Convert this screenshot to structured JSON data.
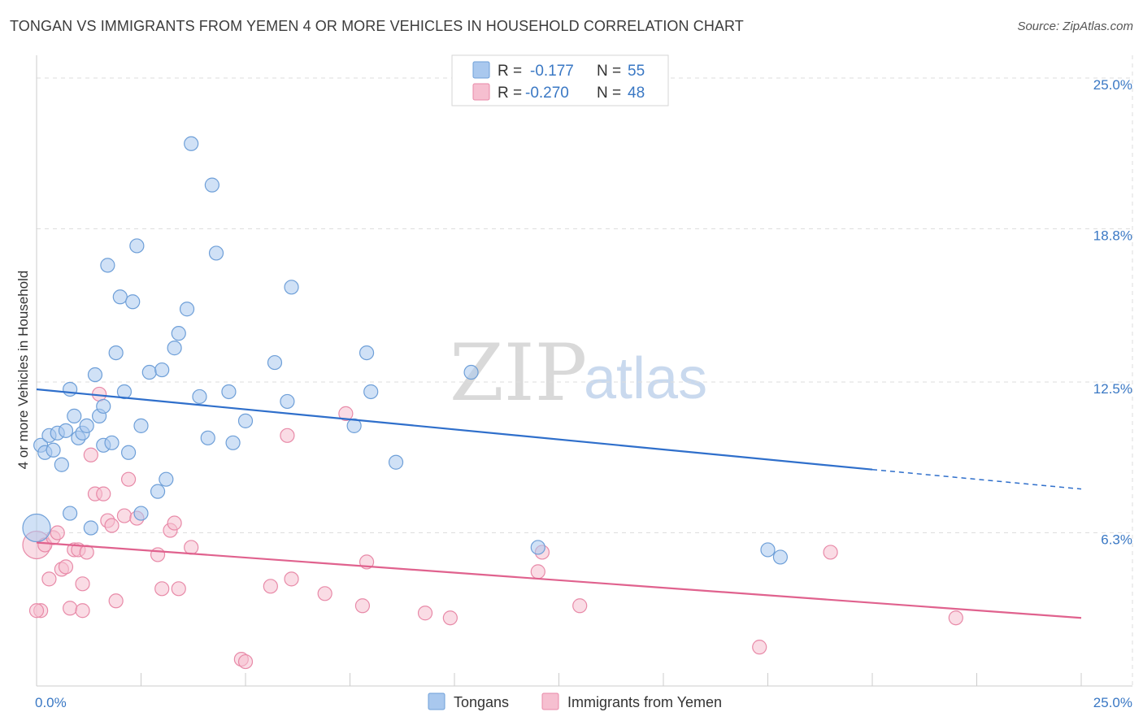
{
  "title": "TONGAN VS IMMIGRANTS FROM YEMEN 4 OR MORE VEHICLES IN HOUSEHOLD CORRELATION CHART",
  "source": "Source: ZipAtlas.com",
  "colors": {
    "blue_fill": "#a9c8ee",
    "blue_stroke": "#6e9fd8",
    "blue_line": "#2f6fcb",
    "pink_fill": "#f6bfd0",
    "pink_stroke": "#e88aa8",
    "pink_line": "#e0628e",
    "grid": "#dddddd",
    "tick_text": "#3a78c4"
  },
  "legend": {
    "r_label": "R =",
    "n_label": "N =",
    "series": [
      {
        "r": "-0.177",
        "n": "55"
      },
      {
        "r": "-0.270",
        "n": "48"
      }
    ]
  },
  "watermark": {
    "zip": "ZIP",
    "atlas": "atlas"
  },
  "chart_data": {
    "type": "scatter",
    "title": "TONGAN VS IMMIGRANTS FROM YEMEN 4 OR MORE VEHICLES IN HOUSEHOLD CORRELATION CHART",
    "xlabel": "",
    "ylabel": "4 or more Vehicles in Household",
    "xlim": [
      0,
      25
    ],
    "ylim": [
      0,
      25
    ],
    "x_tick_labels": [
      "0.0%",
      "25.0%"
    ],
    "y_tick_values": [
      6.3,
      12.5,
      18.8,
      25.0
    ],
    "y_tick_labels": [
      "6.3%",
      "12.5%",
      "18.8%",
      "25.0%"
    ],
    "grid": true,
    "legend_position": "top-center",
    "series": [
      {
        "name": "Tongans",
        "trend": {
          "x0": 0,
          "y0": 12.2,
          "x1": 20,
          "y1": 8.9,
          "dashed_to_x": 25,
          "dashed_to_y": 8.1
        },
        "points": [
          [
            0.1,
            9.9,
            1
          ],
          [
            0.2,
            9.6,
            1
          ],
          [
            0.3,
            10.3,
            1
          ],
          [
            0.4,
            9.7,
            1
          ],
          [
            0.5,
            10.4,
            1
          ],
          [
            0.6,
            9.1,
            1
          ],
          [
            0.7,
            10.5,
            1
          ],
          [
            0.8,
            12.2,
            1
          ],
          [
            0.9,
            11.1,
            1
          ],
          [
            1.0,
            10.2,
            1
          ],
          [
            1.1,
            10.4,
            1
          ],
          [
            1.2,
            10.7,
            1
          ],
          [
            1.3,
            6.5,
            1
          ],
          [
            1.4,
            12.8,
            1
          ],
          [
            1.5,
            11.1,
            1
          ],
          [
            1.6,
            11.5,
            1
          ],
          [
            1.6,
            9.9,
            1
          ],
          [
            1.7,
            17.3,
            1
          ],
          [
            1.8,
            10.0,
            1
          ],
          [
            1.9,
            13.7,
            1
          ],
          [
            2.0,
            16.0,
            1
          ],
          [
            2.1,
            12.1,
            1
          ],
          [
            2.2,
            9.6,
            1
          ],
          [
            2.3,
            15.8,
            1
          ],
          [
            2.4,
            18.1,
            1
          ],
          [
            2.5,
            10.7,
            1
          ],
          [
            2.5,
            7.1,
            1
          ],
          [
            2.7,
            12.9,
            1
          ],
          [
            2.9,
            8.0,
            1
          ],
          [
            3.0,
            13.0,
            1
          ],
          [
            3.1,
            8.5,
            1
          ],
          [
            3.3,
            13.9,
            1
          ],
          [
            3.4,
            14.5,
            1
          ],
          [
            3.6,
            15.5,
            1
          ],
          [
            3.7,
            22.3,
            1
          ],
          [
            3.9,
            11.9,
            1
          ],
          [
            4.1,
            10.2,
            1
          ],
          [
            4.2,
            20.6,
            1
          ],
          [
            4.3,
            17.8,
            1
          ],
          [
            4.6,
            12.1,
            1
          ],
          [
            4.7,
            10.0,
            1
          ],
          [
            5.0,
            10.9,
            1
          ],
          [
            5.7,
            13.3,
            1
          ],
          [
            6.0,
            11.7,
            1
          ],
          [
            6.1,
            16.4,
            1
          ],
          [
            7.6,
            10.7,
            1
          ],
          [
            7.9,
            13.7,
            1
          ],
          [
            8.0,
            12.1,
            1
          ],
          [
            8.6,
            9.2,
            1
          ],
          [
            10.4,
            12.9,
            1
          ],
          [
            12.0,
            5.7,
            1
          ],
          [
            0.0,
            6.5,
            2
          ],
          [
            0.8,
            7.1,
            1
          ],
          [
            17.5,
            5.6,
            1
          ],
          [
            17.8,
            5.3,
            1
          ]
        ]
      },
      {
        "name": "Immigrants from Yemen",
        "trend": {
          "x0": 0,
          "y0": 5.9,
          "x1": 25,
          "y1": 2.8
        },
        "points": [
          [
            0.0,
            5.8,
            2
          ],
          [
            0.1,
            3.1,
            1
          ],
          [
            0.2,
            5.8,
            1
          ],
          [
            0.3,
            4.4,
            1
          ],
          [
            0.4,
            6.1,
            1
          ],
          [
            0.5,
            6.3,
            1
          ],
          [
            0.6,
            4.8,
            1
          ],
          [
            0.7,
            4.9,
            1
          ],
          [
            0.8,
            3.2,
            1
          ],
          [
            0.9,
            5.6,
            1
          ],
          [
            1.0,
            5.6,
            1
          ],
          [
            1.1,
            4.2,
            1
          ],
          [
            1.1,
            3.1,
            1
          ],
          [
            1.2,
            5.5,
            1
          ],
          [
            1.3,
            9.5,
            1
          ],
          [
            1.4,
            7.9,
            1
          ],
          [
            1.5,
            12.0,
            1
          ],
          [
            1.6,
            7.9,
            1
          ],
          [
            1.7,
            6.8,
            1
          ],
          [
            1.8,
            6.6,
            1
          ],
          [
            1.9,
            3.5,
            1
          ],
          [
            2.1,
            7.0,
            1
          ],
          [
            2.2,
            8.5,
            1
          ],
          [
            2.4,
            6.9,
            1
          ],
          [
            2.9,
            5.4,
            1
          ],
          [
            3.0,
            4.0,
            1
          ],
          [
            3.2,
            6.4,
            1
          ],
          [
            3.3,
            6.7,
            1
          ],
          [
            3.4,
            4.0,
            1
          ],
          [
            3.7,
            5.7,
            1
          ],
          [
            4.9,
            1.1,
            1
          ],
          [
            5.0,
            1.0,
            1
          ],
          [
            5.6,
            4.1,
            1
          ],
          [
            6.0,
            10.3,
            1
          ],
          [
            6.1,
            4.4,
            1
          ],
          [
            6.9,
            3.8,
            1
          ],
          [
            7.4,
            11.2,
            1
          ],
          [
            7.8,
            3.3,
            1
          ],
          [
            7.9,
            5.1,
            1
          ],
          [
            9.3,
            3.0,
            1
          ],
          [
            9.9,
            2.8,
            1
          ],
          [
            12.0,
            4.7,
            1
          ],
          [
            12.1,
            5.5,
            1
          ],
          [
            13.0,
            3.3,
            1
          ],
          [
            17.3,
            1.6,
            1
          ],
          [
            19.0,
            5.5,
            1
          ],
          [
            22.0,
            2.8,
            1
          ],
          [
            0.0,
            3.1,
            1
          ]
        ]
      }
    ]
  }
}
